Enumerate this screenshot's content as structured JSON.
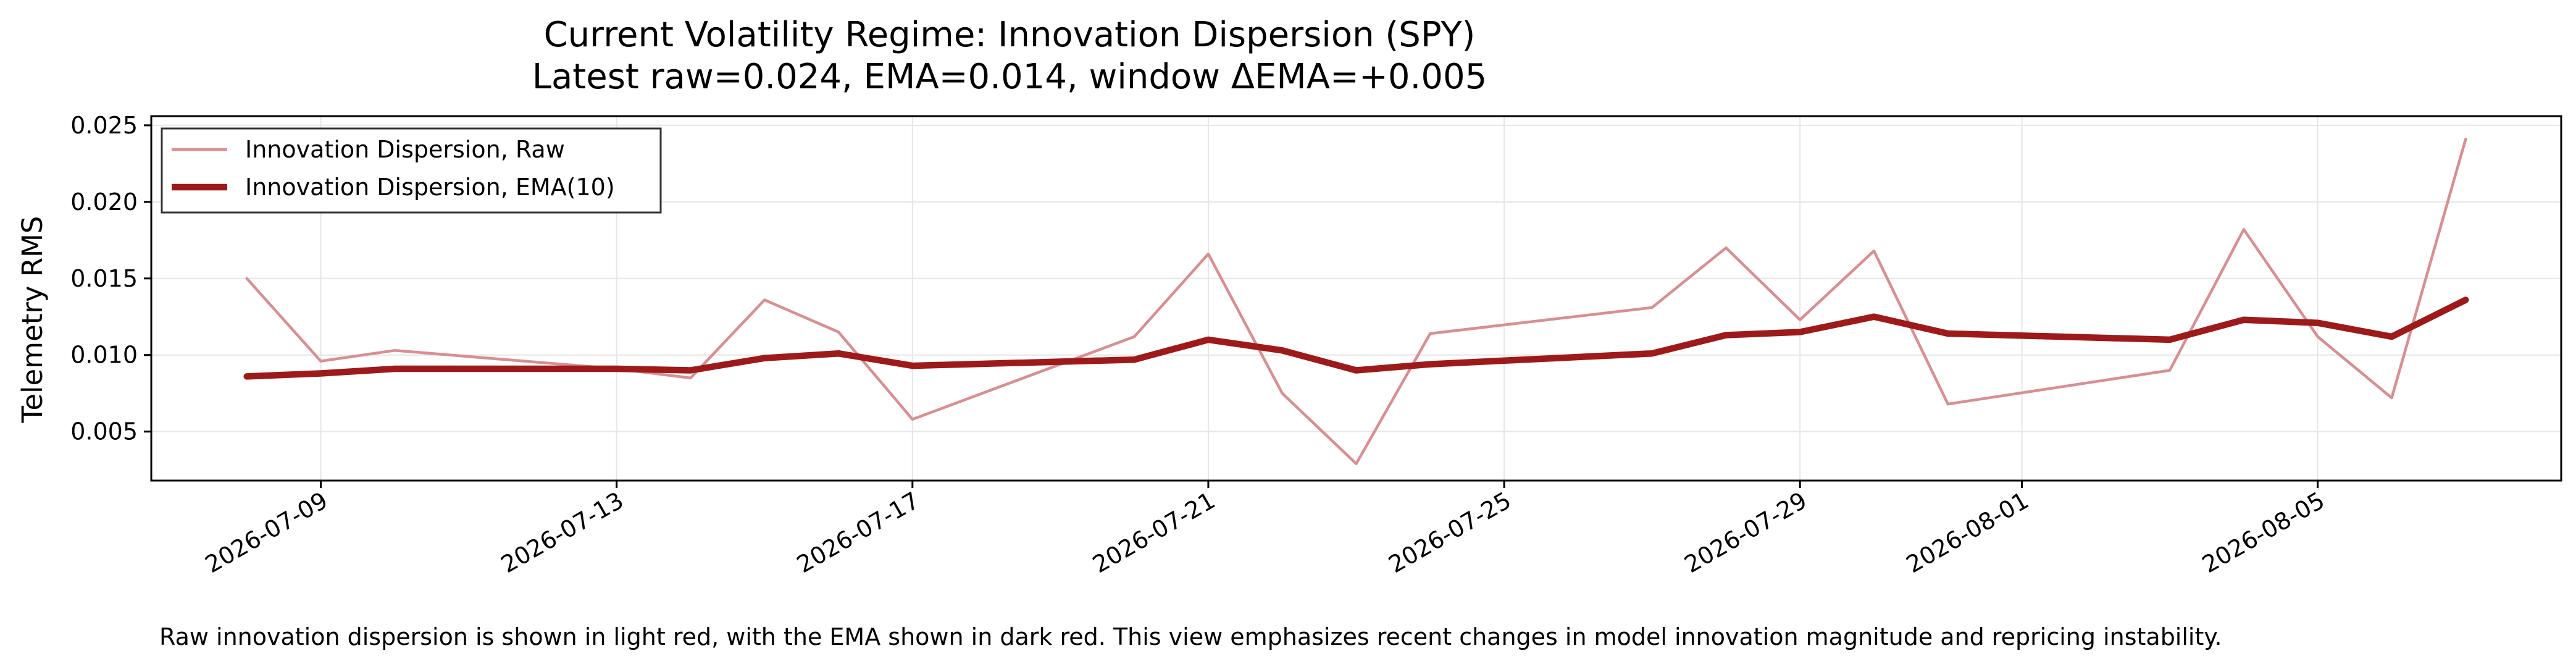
{
  "chart_data": {
    "type": "line",
    "title_line1": "Current Volatility Regime: Innovation Dispersion (SPY)",
    "title_line2": "Latest raw=0.024, EMA=0.014, window ΔEMA=+0.005",
    "xlabel": "",
    "ylabel": "Telemetry RMS",
    "ylim": [
      0.0018,
      0.0256
    ],
    "yticks": [
      0.005,
      0.01,
      0.015,
      0.02,
      0.025
    ],
    "ytick_labels": [
      "0.005",
      "0.010",
      "0.015",
      "0.020",
      "0.025"
    ],
    "xlim": [
      "2026-07-06T17:00",
      "2026-08-08T07:00"
    ],
    "xticks": [
      "2026-07-09",
      "2026-07-13",
      "2026-07-17",
      "2026-07-21",
      "2026-07-25",
      "2026-07-29",
      "2026-08-01",
      "2026-08-05"
    ],
    "grid": true,
    "legend_position": "upper-left",
    "caption": "Raw innovation dispersion is shown in light red, with the EMA shown in dark red. This view emphasizes recent changes in model innovation magnitude and repricing instability.",
    "x": [
      "2026-07-08",
      "2026-07-09",
      "2026-07-10",
      "2026-07-13",
      "2026-07-14",
      "2026-07-15",
      "2026-07-16",
      "2026-07-17",
      "2026-07-20",
      "2026-07-21",
      "2026-07-22",
      "2026-07-23",
      "2026-07-24",
      "2026-07-27",
      "2026-07-28",
      "2026-07-29",
      "2026-07-30",
      "2026-07-31",
      "2026-08-03",
      "2026-08-04",
      "2026-08-05",
      "2026-08-06",
      "2026-08-07"
    ],
    "series": [
      {
        "name": "Innovation Dispersion, Raw",
        "color": "#d98e91",
        "values": [
          0.015,
          0.0096,
          0.0103,
          0.0091,
          0.0085,
          0.0136,
          0.0115,
          0.0058,
          0.0112,
          0.0166,
          0.0075,
          0.0029,
          0.0114,
          0.0131,
          0.017,
          0.0123,
          0.0168,
          0.0068,
          0.009,
          0.0182,
          0.0112,
          0.0072,
          0.0241
        ]
      },
      {
        "name": "Innovation Dispersion, EMA(10)",
        "color": "#9e1a1a",
        "values": [
          0.0086,
          0.0088,
          0.0091,
          0.0091,
          0.009,
          0.0098,
          0.0101,
          0.0093,
          0.0097,
          0.011,
          0.0103,
          0.009,
          0.0094,
          0.0101,
          0.0113,
          0.0115,
          0.0125,
          0.0114,
          0.011,
          0.0123,
          0.0121,
          0.0112,
          0.0136
        ]
      }
    ]
  }
}
